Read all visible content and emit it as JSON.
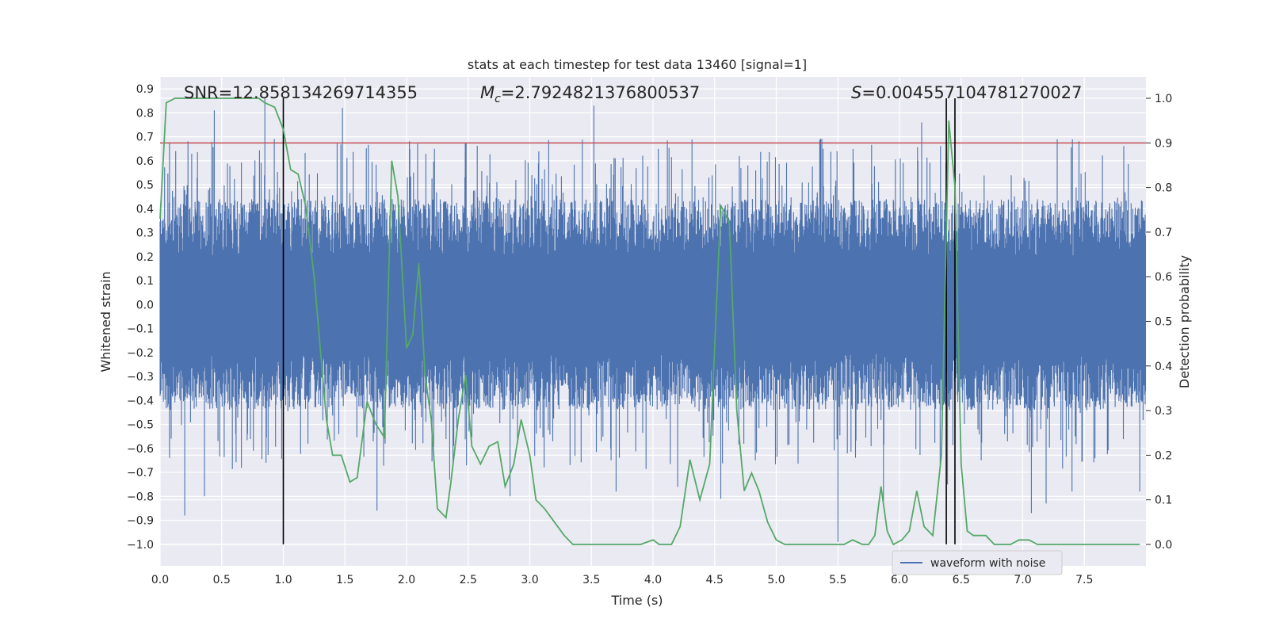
{
  "chart_data": {
    "type": "line",
    "title": "stats at each timestep for test data 13460 [signal=1]",
    "xlabel": "Time (s)",
    "ylabel": "Whitened strain",
    "y2label": "Detection probability",
    "xlim": [
      0,
      8
    ],
    "ylim": [
      -1.09,
      0.95
    ],
    "y2lim": [
      -0.048,
      1.048
    ],
    "xticks": [
      "0.0",
      "0.5",
      "1.0",
      "1.5",
      "2.0",
      "2.5",
      "3.0",
      "3.5",
      "4.0",
      "4.5",
      "5.0",
      "5.5",
      "6.0",
      "6.5",
      "7.0",
      "7.5"
    ],
    "yticks": [
      "0.9",
      "0.8",
      "0.7",
      "0.6",
      "0.5",
      "0.4",
      "0.3",
      "0.2",
      "0.1",
      "0.0",
      "-0.1",
      "-0.2",
      "-0.3",
      "-0.4",
      "-0.5",
      "-0.6",
      "-0.7",
      "-0.8",
      "-0.9",
      "-1.0"
    ],
    "y2ticks": [
      "0.0",
      "0.1",
      "0.2",
      "0.3",
      "0.4",
      "0.5",
      "0.6",
      "0.7",
      "0.8",
      "0.9",
      "1.0"
    ],
    "grid": true,
    "legend": {
      "position": "bottom-right",
      "entries": [
        "waveform with noise"
      ]
    },
    "annotations": {
      "snr": "SNR=12.858134269714355",
      "mc_symbol": "M",
      "mc_sub": "c",
      "mc_value": "=2.7924821376800537",
      "s_symbol": "S",
      "s_value": "=0.004557104781270027"
    },
    "threshold": {
      "axis": "y2",
      "value": 0.9,
      "color": "#c44e52"
    },
    "vlines": [
      {
        "x": 1.0,
        "y_from": -1.0,
        "y2_to": 1.0
      },
      {
        "x": 6.38,
        "y_from": -1.0,
        "y2_to": 1.0
      },
      {
        "x": 6.45,
        "y_from": -1.0,
        "y2_to": 1.0
      }
    ],
    "series": [
      {
        "name": "waveform with noise",
        "axis": "y",
        "color": "#4c72b0",
        "envelope_hint": {
          "typical": 0.44,
          "max": 0.86,
          "min": -1.0
        },
        "spikes": [
          [
            0.2,
            -0.88
          ],
          [
            0.36,
            -0.8
          ],
          [
            0.44,
            0.81
          ],
          [
            0.85,
            0.86
          ],
          [
            0.86,
            -0.66
          ],
          [
            1.0,
            -0.73
          ],
          [
            1.76,
            -0.86
          ],
          [
            2.35,
            -0.73
          ],
          [
            2.84,
            -0.8
          ],
          [
            3.52,
            0.83
          ],
          [
            3.7,
            -0.78
          ],
          [
            4.2,
            -0.76
          ],
          [
            4.55,
            -0.81
          ],
          [
            5.5,
            -0.99
          ],
          [
            5.87,
            -0.82
          ],
          [
            6.39,
            -0.75
          ],
          [
            6.45,
            0.78
          ],
          [
            7.07,
            -0.87
          ],
          [
            7.19,
            -0.83
          ],
          [
            7.4,
            -0.78
          ],
          [
            7.95,
            -0.78
          ],
          [
            1.48,
            0.82
          ],
          [
            6.18,
            0.76
          ],
          [
            7.28,
            0.69
          ]
        ]
      },
      {
        "name": "detection probability",
        "axis": "y2",
        "color": "#55a868",
        "x": [
          0.0,
          0.05,
          0.12,
          0.2,
          0.3,
          0.4,
          0.5,
          0.6,
          0.7,
          0.8,
          0.85,
          0.93,
          1.0,
          1.06,
          1.12,
          1.18,
          1.25,
          1.3,
          1.35,
          1.4,
          1.47,
          1.54,
          1.6,
          1.68,
          1.75,
          1.82,
          1.88,
          1.93,
          2.0,
          2.05,
          2.1,
          2.15,
          2.2,
          2.25,
          2.32,
          2.36,
          2.42,
          2.48,
          2.53,
          2.6,
          2.67,
          2.74,
          2.8,
          2.87,
          2.93,
          3.0,
          3.05,
          3.12,
          3.2,
          3.28,
          3.35,
          3.45,
          3.6,
          3.75,
          3.9,
          4.0,
          4.05,
          4.1,
          4.15,
          4.22,
          4.3,
          4.38,
          4.46,
          4.55,
          4.62,
          4.68,
          4.74,
          4.8,
          4.86,
          4.93,
          5.0,
          5.07,
          5.15,
          5.25,
          5.35,
          5.45,
          5.55,
          5.62,
          5.7,
          5.75,
          5.8,
          5.85,
          5.9,
          5.95,
          6.02,
          6.08,
          6.14,
          6.2,
          6.27,
          6.34,
          6.4,
          6.45,
          6.5,
          6.55,
          6.6,
          6.65,
          6.7,
          6.77,
          6.84,
          6.9,
          6.97,
          7.05,
          7.12,
          7.2,
          7.3,
          7.4,
          7.5,
          7.6,
          7.7,
          7.8,
          7.95
        ],
        "y": [
          0.73,
          0.99,
          1.0,
          1.0,
          1.0,
          1.0,
          1.0,
          1.0,
          1.0,
          1.0,
          0.99,
          0.98,
          0.93,
          0.84,
          0.83,
          0.76,
          0.6,
          0.44,
          0.28,
          0.2,
          0.2,
          0.14,
          0.15,
          0.32,
          0.27,
          0.24,
          0.86,
          0.78,
          0.44,
          0.47,
          0.63,
          0.38,
          0.28,
          0.08,
          0.06,
          0.14,
          0.28,
          0.38,
          0.22,
          0.18,
          0.22,
          0.23,
          0.13,
          0.18,
          0.28,
          0.2,
          0.1,
          0.08,
          0.05,
          0.02,
          0.0,
          0.0,
          0.0,
          0.0,
          0.0,
          0.01,
          0.0,
          0.0,
          0.0,
          0.04,
          0.19,
          0.1,
          0.18,
          0.76,
          0.72,
          0.3,
          0.12,
          0.16,
          0.12,
          0.05,
          0.01,
          0.0,
          0.0,
          0.0,
          0.0,
          0.0,
          0.0,
          0.01,
          0.0,
          0.0,
          0.02,
          0.13,
          0.03,
          0.0,
          0.01,
          0.03,
          0.12,
          0.04,
          0.02,
          0.2,
          0.95,
          0.8,
          0.18,
          0.03,
          0.02,
          0.02,
          0.02,
          0.0,
          0.0,
          0.0,
          0.01,
          0.01,
          0.0,
          0.0,
          0.0,
          0.0,
          0.0,
          0.0,
          0.0,
          0.0,
          0.0
        ]
      }
    ]
  }
}
